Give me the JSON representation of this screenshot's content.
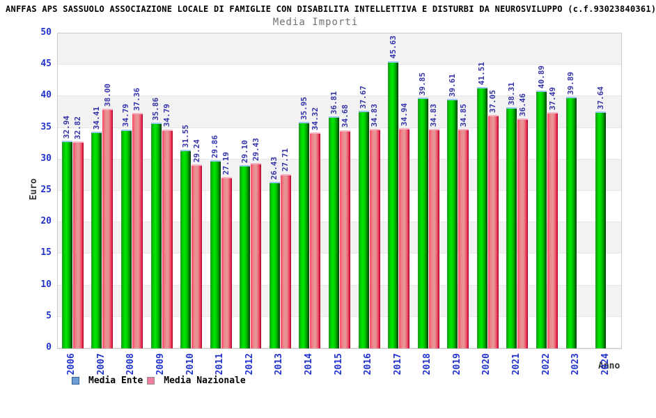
{
  "header": {
    "line": "ANFFAS APS SASSUOLO ASSOCIAZIONE LOCALE DI FAMIGLIE CON DISABILITA INTELLETTIVA E DISTURBI DA NEUROSVILUPPO (c.f.93023840361)"
  },
  "chart_data": {
    "type": "bar",
    "title": "Media Importi",
    "xlabel": "Anno",
    "ylabel": "Euro",
    "ylim": [
      0,
      50
    ],
    "ytick_step": 5,
    "grid": "alternating-horizontal-bands",
    "legend_position": "bottom-left",
    "categories": [
      "2006",
      "2007",
      "2008",
      "2009",
      "2010",
      "2011",
      "2012",
      "2013",
      "2014",
      "2015",
      "2016",
      "2017",
      "2018",
      "2019",
      "2020",
      "2021",
      "2022",
      "2023",
      "2024"
    ],
    "series": [
      {
        "name": "Media Ente",
        "legend_color": "#6d9fd4",
        "legend_border": "#3a5f92",
        "bar_style": "green",
        "values": [
          32.94,
          34.41,
          34.79,
          35.86,
          31.55,
          29.86,
          29.1,
          26.43,
          35.95,
          36.81,
          37.67,
          45.63,
          39.85,
          39.61,
          41.51,
          38.31,
          40.89,
          39.89,
          37.64
        ]
      },
      {
        "name": "Media Nazionale",
        "legend_color": "#ef7b9d",
        "legend_border": "#8d8d8d",
        "bar_style": "red",
        "values": [
          32.82,
          38.0,
          37.36,
          34.79,
          29.24,
          27.19,
          29.43,
          27.71,
          34.32,
          34.68,
          34.83,
          34.94,
          34.83,
          34.85,
          37.05,
          36.46,
          37.49,
          null,
          null
        ]
      }
    ],
    "colors": {
      "tick_label": "#2233cc",
      "value_label": "#3333aa",
      "band_gray": "#f2f2f2",
      "band_white": "#ffffff",
      "green_bar_main": "#00dd00",
      "red_bar_main": "#e79595",
      "green_bar_cap": "#9cc7ee",
      "red_bar_cap": "#f6b6c6"
    }
  }
}
